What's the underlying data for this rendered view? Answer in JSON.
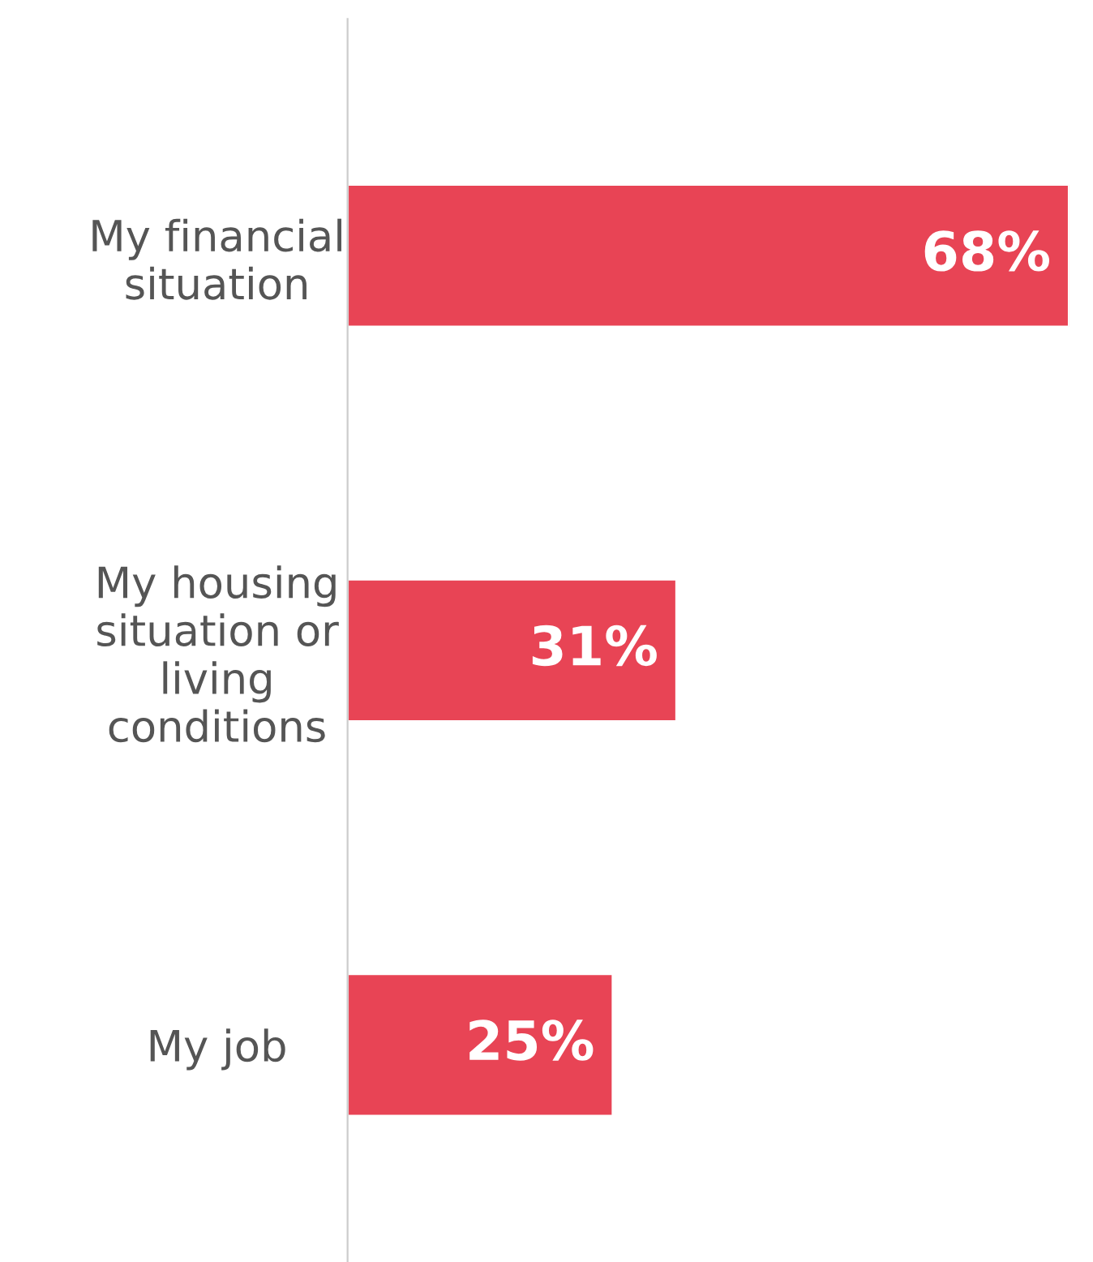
{
  "chart_data": {
    "type": "bar",
    "orientation": "horizontal",
    "categories": [
      "My financial\nsituation",
      "My housing\nsituation or\nliving\nconditions",
      "My job"
    ],
    "values": [
      68,
      31,
      25
    ],
    "value_labels": [
      "68%",
      "31%",
      "25%"
    ],
    "color": "#e84455",
    "grid": false,
    "legend": false
  }
}
